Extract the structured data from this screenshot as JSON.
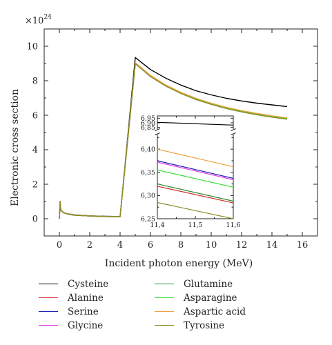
{
  "chart_data": {
    "type": "line",
    "title": "",
    "xlabel": "Incident photon energy (MeV)",
    "ylabel": "Electronic cross section",
    "y_multiplier": "×10",
    "y_exponent": "24",
    "xlim": [
      -1,
      17
    ],
    "ylim": [
      -1,
      11
    ],
    "x_ticks": [
      "0",
      "2",
      "4",
      "6",
      "8",
      "10",
      "12",
      "14",
      "16"
    ],
    "y_ticks": [
      "0",
      "2",
      "4",
      "6",
      "8",
      "10"
    ],
    "grid": false,
    "legend_position": "below",
    "x": [
      0.0,
      0.05,
      0.1,
      0.3,
      0.6,
      1.0,
      2.0,
      3.0,
      4.0,
      5.0,
      6.0,
      7.0,
      8.0,
      9.0,
      10.0,
      11.0,
      12.0,
      13.0,
      14.0,
      15.0
    ],
    "series": [
      {
        "name": "Cysteine",
        "color": "#000000",
        "values": [
          0.0,
          1.0,
          0.5,
          0.35,
          0.28,
          0.22,
          0.17,
          0.14,
          0.13,
          9.35,
          8.65,
          8.15,
          7.75,
          7.42,
          7.18,
          6.98,
          6.83,
          6.7,
          6.6,
          6.5
        ]
      },
      {
        "name": "Alanine",
        "color": "#d62728",
        "values": [
          0.0,
          0.95,
          0.48,
          0.34,
          0.27,
          0.21,
          0.16,
          0.13,
          0.12,
          9.0,
          8.25,
          7.7,
          7.28,
          6.92,
          6.64,
          6.4,
          6.2,
          6.04,
          5.9,
          5.78
        ]
      },
      {
        "name": "Serine",
        "color": "#1f1fb4",
        "values": [
          0.0,
          0.95,
          0.48,
          0.34,
          0.27,
          0.21,
          0.16,
          0.13,
          0.12,
          9.02,
          8.28,
          7.73,
          7.31,
          6.95,
          6.67,
          6.44,
          6.25,
          6.08,
          5.95,
          5.83
        ]
      },
      {
        "name": "Glycine",
        "color": "#e040e0",
        "values": [
          0.0,
          0.95,
          0.48,
          0.34,
          0.27,
          0.21,
          0.16,
          0.13,
          0.12,
          9.02,
          8.28,
          7.73,
          7.3,
          6.95,
          6.67,
          6.43,
          6.24,
          6.08,
          5.94,
          5.82
        ]
      },
      {
        "name": "Glutamine",
        "color": "#2e8b2e",
        "values": [
          0.0,
          0.95,
          0.48,
          0.34,
          0.27,
          0.21,
          0.16,
          0.13,
          0.12,
          9.0,
          8.26,
          7.71,
          7.28,
          6.93,
          6.65,
          6.41,
          6.21,
          6.05,
          5.91,
          5.79
        ]
      },
      {
        "name": "Asparagine",
        "color": "#33dd33",
        "values": [
          0.0,
          0.95,
          0.48,
          0.34,
          0.27,
          0.21,
          0.16,
          0.13,
          0.12,
          9.01,
          8.27,
          7.72,
          7.29,
          6.94,
          6.66,
          6.42,
          6.23,
          6.07,
          5.93,
          5.81
        ]
      },
      {
        "name": "Aspartic acid",
        "color": "#f0a040",
        "values": [
          0.0,
          0.96,
          0.49,
          0.34,
          0.27,
          0.21,
          0.16,
          0.13,
          0.12,
          9.05,
          8.31,
          7.76,
          7.33,
          6.98,
          6.7,
          6.46,
          6.27,
          6.11,
          5.97,
          5.85
        ]
      },
      {
        "name": "Tyrosine",
        "color": "#8c8c28",
        "values": [
          0.0,
          0.94,
          0.47,
          0.33,
          0.26,
          0.2,
          0.16,
          0.13,
          0.12,
          8.98,
          8.24,
          7.69,
          7.26,
          6.91,
          6.63,
          6.39,
          6.19,
          6.03,
          5.89,
          5.77
        ]
      }
    ],
    "inset": {
      "xlim": [
        11.4,
        11.6
      ],
      "x_ticks": [
        "11,4",
        "11,5",
        "11,6"
      ],
      "y_ticks_top": [
        "6,95",
        "6,90",
        "6,85"
      ],
      "y_ticks_bottom": [
        "6,40",
        "6,35",
        "6,30",
        "6,25"
      ],
      "ylim_top": [
        6.84,
        6.96
      ],
      "ylim_bottom": [
        6.25,
        6.43
      ],
      "break_marker": "broken y-axis",
      "series": [
        {
          "name": "Cysteine",
          "color": "#000000",
          "y_start": 6.905,
          "y_end": 6.875
        },
        {
          "name": "Aspartic acid",
          "color": "#f0a040",
          "y_start": 6.4,
          "y_end": 6.362
        },
        {
          "name": "Serine",
          "color": "#1f1fb4",
          "y_start": 6.375,
          "y_end": 6.337
        },
        {
          "name": "Glycine",
          "color": "#e040e0",
          "y_start": 6.372,
          "y_end": 6.334
        },
        {
          "name": "Asparagine",
          "color": "#33dd33",
          "y_start": 6.355,
          "y_end": 6.318
        },
        {
          "name": "Glutamine",
          "color": "#2e8b2e",
          "y_start": 6.325,
          "y_end": 6.288
        },
        {
          "name": "Alanine",
          "color": "#d62728",
          "y_start": 6.32,
          "y_end": 6.284
        },
        {
          "name": "Tyrosine",
          "color": "#8c8c28",
          "y_start": 6.285,
          "y_end": 6.25
        }
      ]
    }
  },
  "legend": {
    "left": [
      {
        "label": "Cysteine",
        "color": "#000000"
      },
      {
        "label": "Alanine",
        "color": "#d62728"
      },
      {
        "label": "Serine",
        "color": "#1f1fb4"
      },
      {
        "label": "Glycine",
        "color": "#e040e0"
      }
    ],
    "right": [
      {
        "label": "Glutamine",
        "color": "#2e8b2e"
      },
      {
        "label": "Asparagine",
        "color": "#33dd33"
      },
      {
        "label": "Aspartic acid",
        "color": "#f0a040"
      },
      {
        "label": "Tyrosine",
        "color": "#8c8c28"
      }
    ]
  }
}
